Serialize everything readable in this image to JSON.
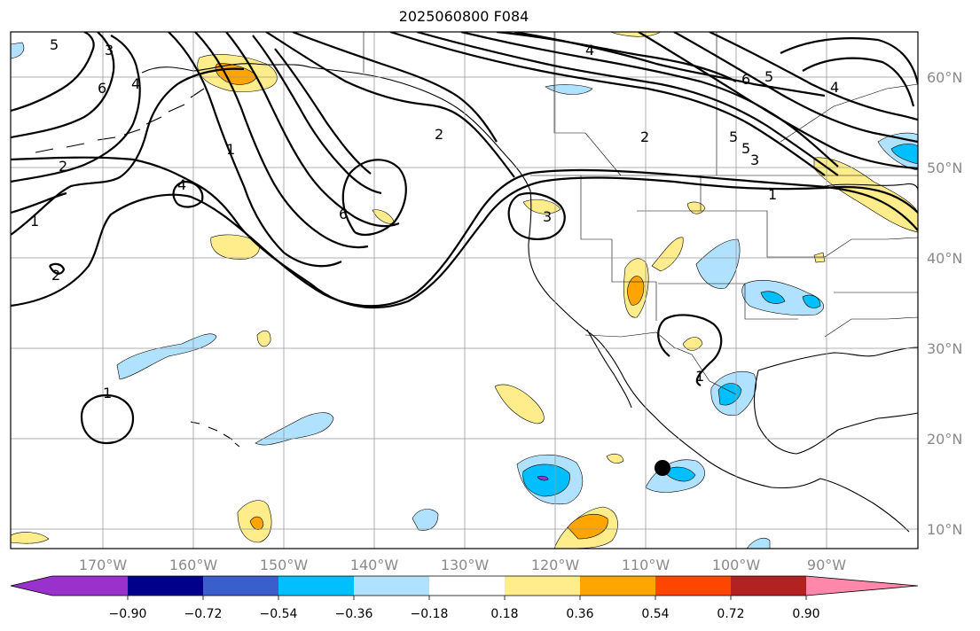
{
  "title": "2025060800 F084",
  "lon_labels": [
    "170°W",
    "160°W",
    "150°W",
    "140°W",
    "130°W",
    "120°W",
    "110°W",
    "100°W",
    "90°W"
  ],
  "lat_labels": [
    "60°N",
    "50°N",
    "40°N",
    "30°N",
    "20°N",
    "10°N"
  ],
  "colorbar": {
    "ticks": [
      "−0.90",
      "−0.72",
      "−0.54",
      "−0.36",
      "−0.18",
      "0.18",
      "0.36",
      "0.54",
      "0.72",
      "0.90"
    ],
    "colors": [
      "#9932cc",
      "#00008b",
      "#3a5fcd",
      "#00bfff",
      "#b0e2ff",
      "#ffffff",
      "#ffec8b",
      "#ffa500",
      "#ff4500",
      "#b22222",
      "#ff88aa"
    ]
  },
  "contour_labels": [
    "5",
    "3",
    "6",
    "4",
    "1",
    "2",
    "1",
    "2",
    "1",
    "4",
    "6",
    "2",
    "4",
    "3",
    "2",
    "5",
    "5",
    "3",
    "6",
    "5",
    "4",
    "1",
    "1"
  ],
  "marker": {
    "lon": "108.5°W",
    "lat": "17°N"
  }
}
